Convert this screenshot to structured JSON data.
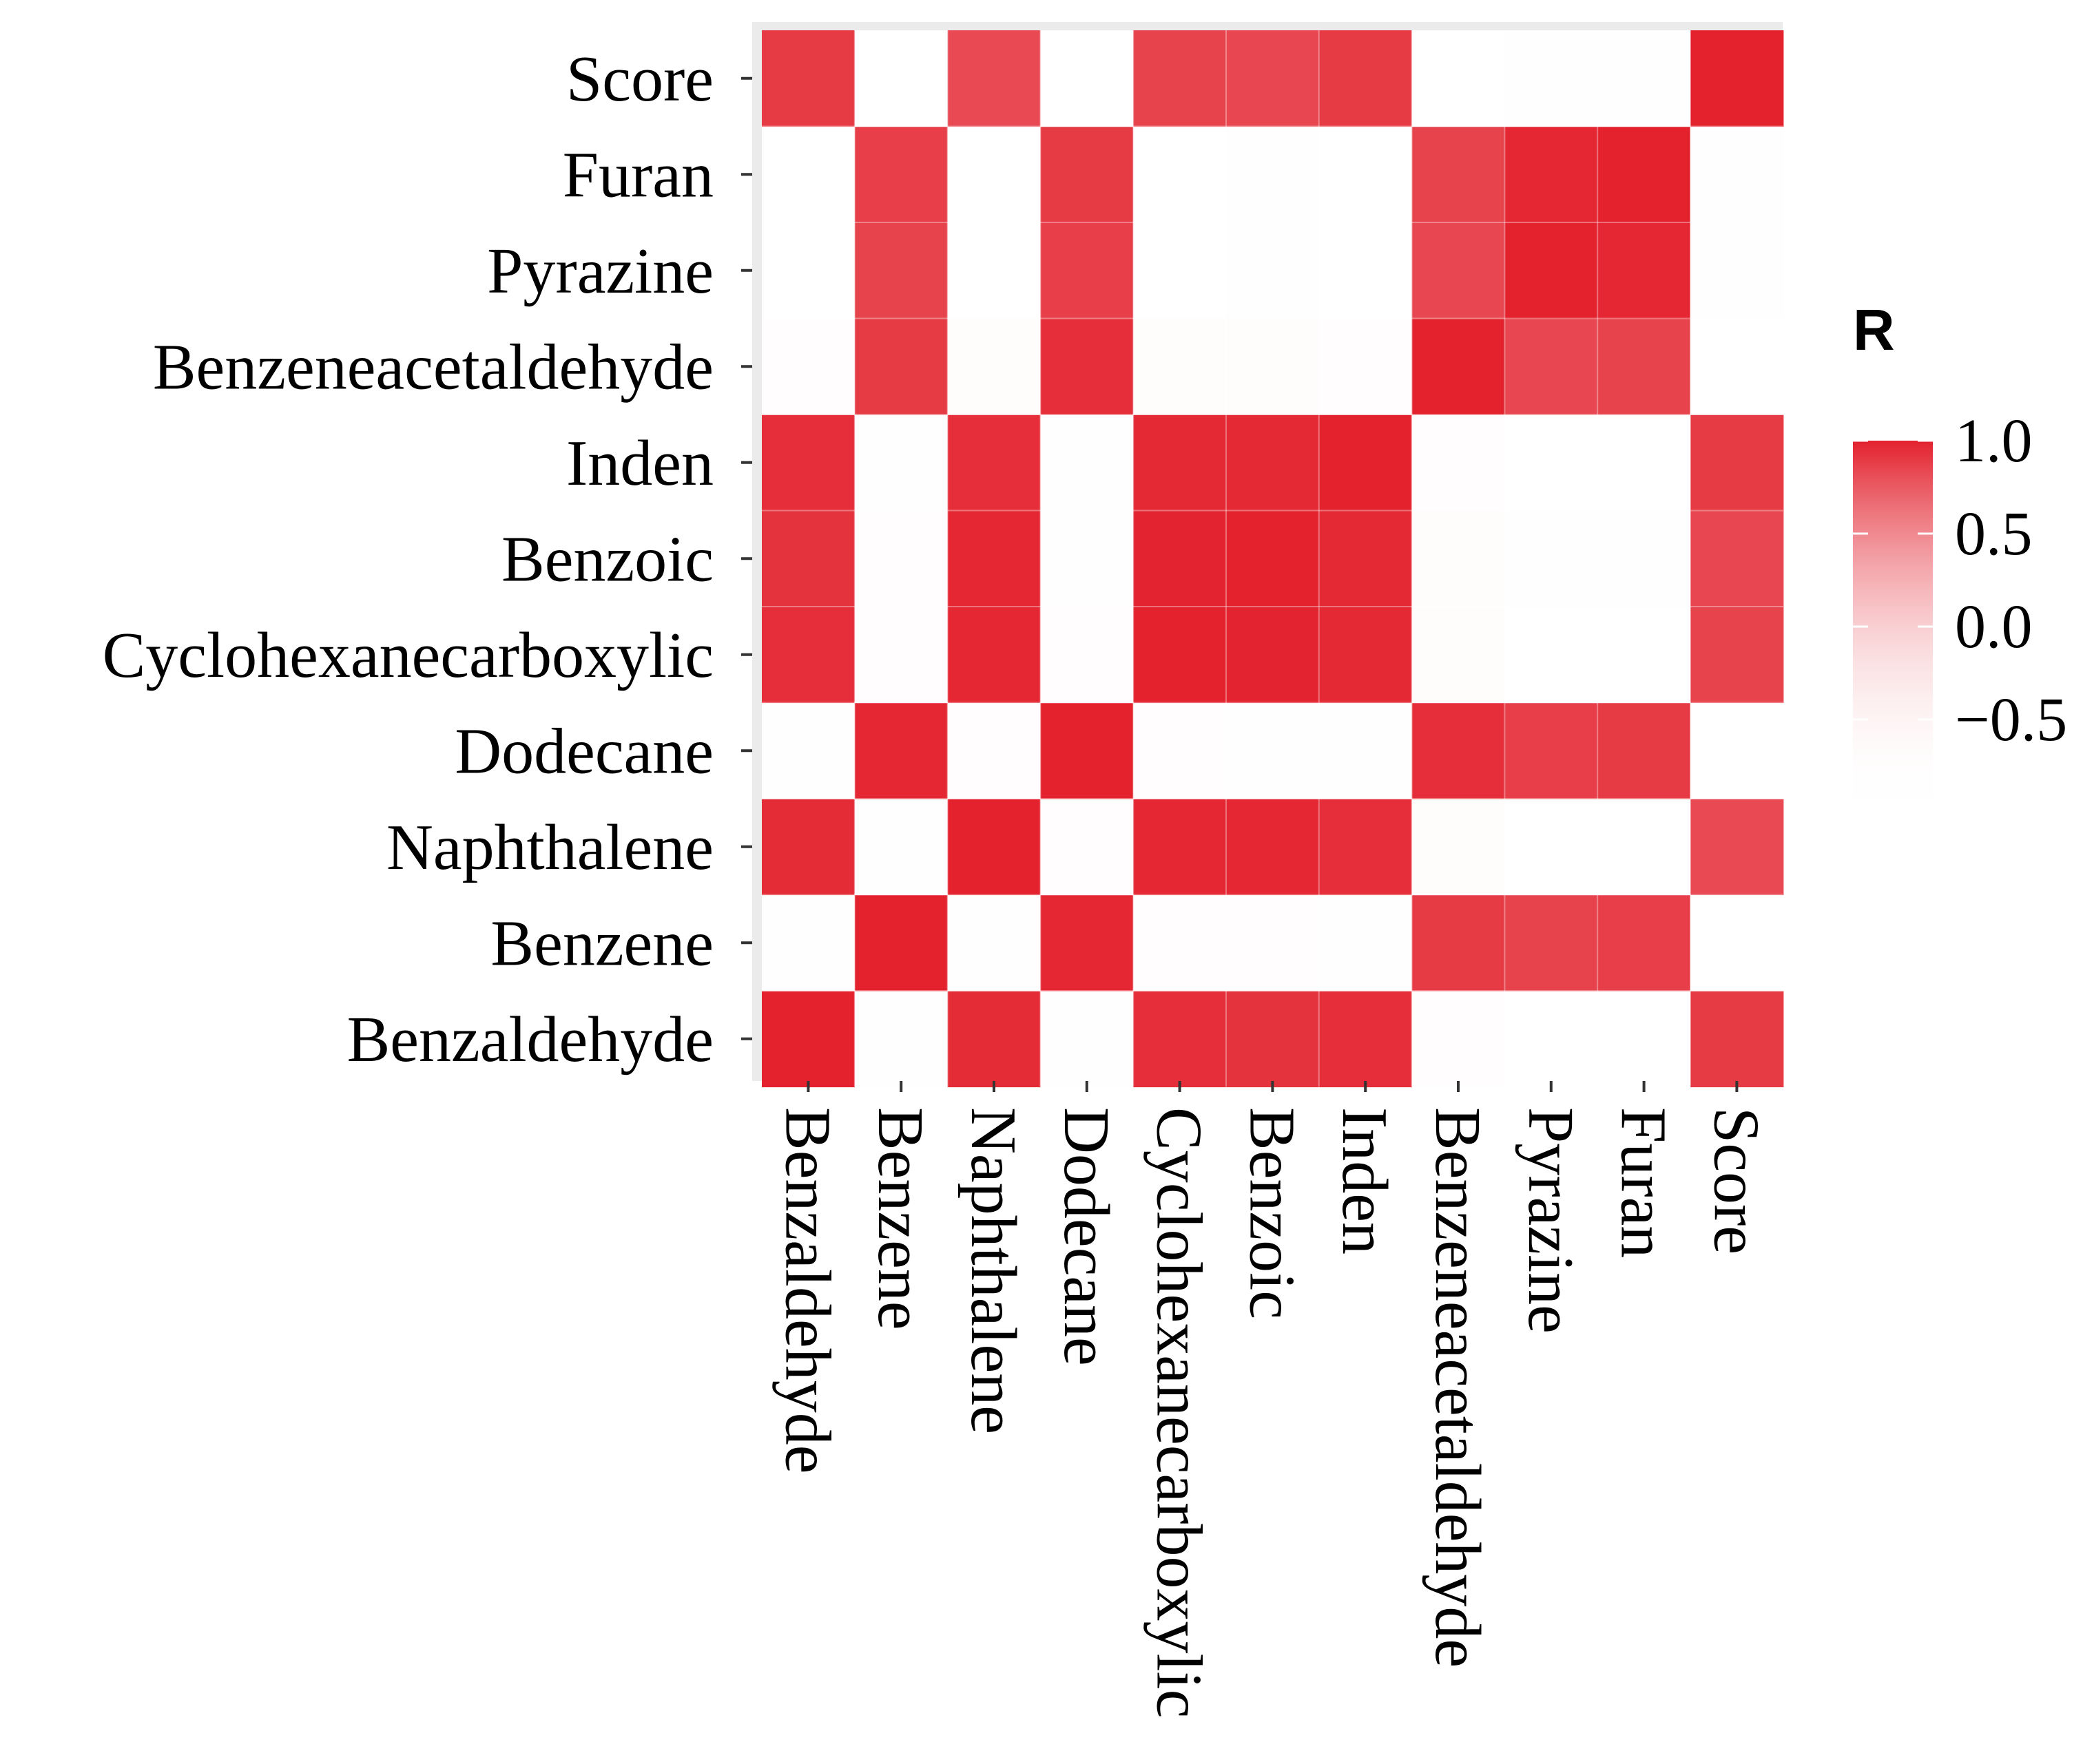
{
  "chart_data": {
    "type": "heatmap",
    "title": "",
    "xlabel": "",
    "ylabel": "",
    "x_categories": [
      "Benzaldehyde",
      "Benzene",
      "Naphthalene",
      "Dodecane",
      "Cyclohexanecarboxylic",
      "Benzoic",
      "Inden",
      "Benzeneacetaldehyde",
      "Pyrazine",
      "Furan",
      "Score"
    ],
    "y_categories": [
      "Benzaldehyde",
      "Benzene",
      "Naphthalene",
      "Dodecane",
      "Cyclohexanecarboxylic",
      "Benzoic",
      "Inden",
      "Benzeneacetaldehyde",
      "Pyrazine",
      "Furan",
      "Score"
    ],
    "values": [
      [
        1.0,
        -0.82,
        0.96,
        -0.84,
        0.95,
        0.93,
        0.95,
        -0.75,
        -0.9,
        -0.9,
        0.9
      ],
      [
        -0.82,
        1.0,
        -0.8,
        0.98,
        -0.78,
        -0.78,
        -0.82,
        0.9,
        0.86,
        0.88,
        -0.9
      ],
      [
        0.96,
        -0.8,
        1.0,
        -0.78,
        0.98,
        0.98,
        0.95,
        -0.72,
        -0.88,
        -0.9,
        0.83
      ],
      [
        -0.84,
        0.98,
        -0.78,
        1.0,
        -0.78,
        -0.8,
        -0.82,
        0.95,
        0.88,
        0.9,
        -0.88
      ],
      [
        0.95,
        -0.78,
        0.98,
        -0.78,
        1.0,
        0.99,
        0.97,
        -0.72,
        -0.88,
        -0.88,
        0.86
      ],
      [
        0.93,
        -0.78,
        0.98,
        -0.8,
        0.99,
        1.0,
        0.97,
        -0.7,
        -0.84,
        -0.86,
        0.84
      ],
      [
        0.95,
        -0.82,
        0.95,
        -0.82,
        0.97,
        0.97,
        1.0,
        -0.78,
        -0.9,
        -0.9,
        0.9
      ],
      [
        -0.75,
        0.9,
        -0.72,
        0.95,
        -0.72,
        -0.7,
        -0.78,
        1.0,
        0.84,
        0.86,
        -0.9
      ],
      [
        -0.9,
        0.86,
        -0.88,
        0.88,
        -0.88,
        -0.84,
        -0.9,
        0.84,
        1.0,
        0.98,
        -0.85
      ],
      [
        -0.9,
        0.88,
        -0.9,
        0.9,
        -0.88,
        -0.86,
        -0.9,
        0.86,
        0.98,
        1.0,
        -0.85
      ],
      [
        0.9,
        -0.9,
        0.83,
        -0.88,
        0.86,
        0.84,
        0.9,
        -0.9,
        -0.85,
        -0.85,
        1.0
      ]
    ],
    "color_scale": {
      "title": "R",
      "range": [
        -1.0,
        1.0
      ],
      "ticks": [
        1.0,
        0.5,
        0.0,
        -0.5
      ],
      "tick_labels": [
        "1.0",
        "0.5",
        "0.0",
        "−0.5"
      ],
      "low_color": "#ffffff",
      "high_color": "#e3222e"
    },
    "panel_background": "#ebebeb",
    "grid": true
  }
}
